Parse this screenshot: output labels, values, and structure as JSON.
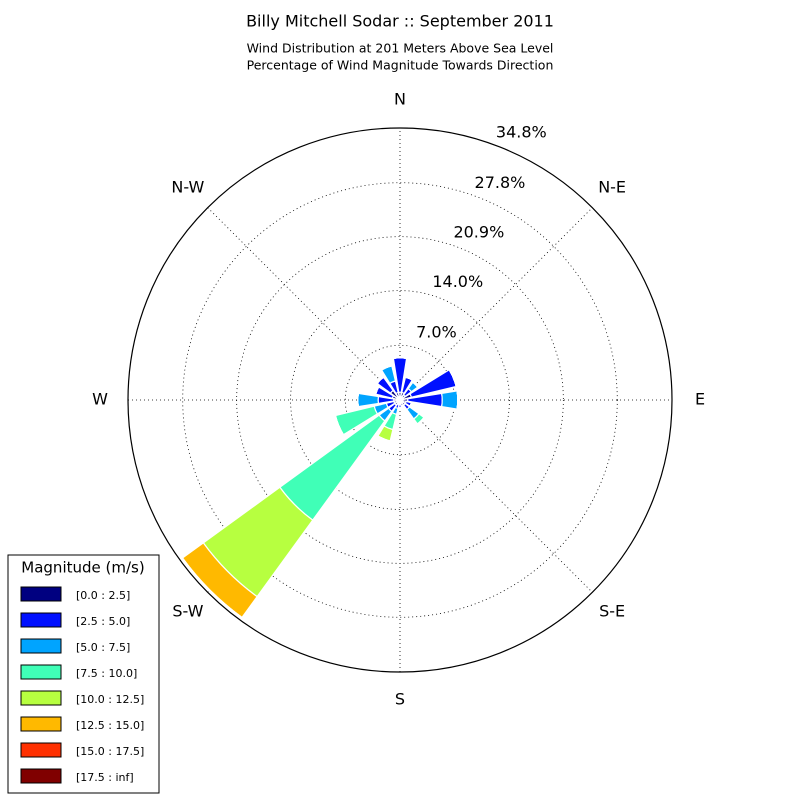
{
  "chart_data": {
    "type": "windrose",
    "title": "Billy Mitchell Sodar :: September 2011",
    "subtitle": [
      "Wind Distribution at 201 Meters Above Sea Level",
      "Percentage of Wind Magnitude Towards Direction"
    ],
    "categories": [
      "N",
      null,
      "N-E",
      null,
      "E",
      null,
      "S-E",
      null,
      "S",
      null,
      "S-W",
      null,
      "W",
      null,
      "N-W",
      null
    ],
    "ylim": [
      0,
      34.8
    ],
    "yticks": [
      {
        "value": 7.0,
        "label": "7.0%"
      },
      {
        "value": 14.0,
        "label": "14.0%"
      },
      {
        "value": 20.9,
        "label": "20.9%"
      },
      {
        "value": 27.8,
        "label": "27.8%"
      },
      {
        "value": 34.8,
        "label": "34.8%"
      }
    ],
    "grid": true,
    "legend_title": "Magnitude (m/s)",
    "legend": "lower left",
    "series": [
      {
        "name": "[0.0 : 2.5]",
        "color": "#000080",
        "values": [
          1.0,
          1.0,
          0.8,
          1.5,
          1.0,
          0.8,
          0.8,
          0.8,
          0.6,
          0.6,
          0.8,
          0.8,
          0.8,
          1.0,
          1.5,
          1.0
        ]
      },
      {
        "name": "[2.5 : 5.0]",
        "color": "#0010ff",
        "values": [
          4.4,
          2.0,
          1.0,
          5.9,
          4.4,
          0.7,
          0.7,
          0,
          0.4,
          0.5,
          1.0,
          1.0,
          2.0,
          2.2,
          2.1,
          1.5
        ]
      },
      {
        "name": "[5.0 : 7.5]",
        "color": "#00a4ff",
        "values": [
          0,
          0,
          1.0,
          0,
          2.0,
          0,
          1.5,
          0,
          0,
          0.8,
          1.5,
          1.6,
          2.6,
          0,
          0,
          2.0
        ]
      },
      {
        "name": "[7.5 : 10.0]",
        "color": "#40ffb7",
        "values": [
          0,
          0,
          0,
          0,
          0,
          0,
          0.8,
          0,
          0,
          2.0,
          15.7,
          5.1,
          0,
          0,
          0,
          0
        ]
      },
      {
        "name": "[10.0 : 12.5]",
        "color": "#b7ff40",
        "values": [
          0,
          0,
          0,
          0,
          0,
          0,
          0,
          0,
          0,
          1.5,
          12.1,
          0,
          0,
          0,
          0,
          0
        ]
      },
      {
        "name": "[12.5 : 15.0]",
        "color": "#ffb900",
        "values": [
          0,
          0,
          0,
          0,
          0,
          0,
          0,
          0,
          0,
          0,
          3.3,
          0,
          0,
          0,
          0,
          0
        ]
      },
      {
        "name": "[15.0 : 17.5]",
        "color": "#ff3000",
        "values": [
          0,
          0,
          0,
          0,
          0,
          0,
          0,
          0,
          0,
          0,
          0,
          0,
          0,
          0,
          0,
          0
        ]
      },
      {
        "name": "[17.5 : inf]",
        "color": "#800000",
        "values": [
          0,
          0,
          0,
          0,
          0,
          0,
          0,
          0,
          0,
          0,
          0,
          0,
          0,
          0,
          0,
          0
        ]
      }
    ]
  }
}
